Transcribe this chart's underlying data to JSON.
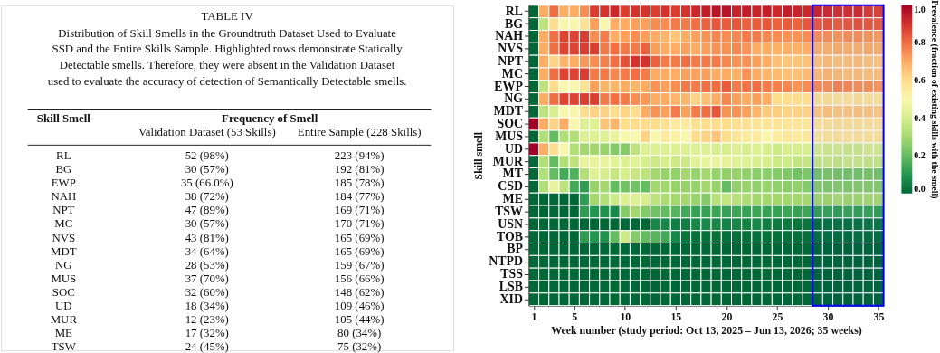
{
  "chart_data": [
    {
      "type": "other",
      "title": "TABLE IV",
      "annotations": [
        "Distribution of Skill Smells in the Groundtruth Dataset Used to Evaluate",
        "SSD and the Entire Skills Sample. Highlighted rows demonstrate Statically",
        "Detectable smells. Therefore, they were absent in the Validation Dataset",
        "used to evaluate the accuracy of detection of Semantically Detectable smells.",
        "Frequency of Smell",
        "Validation Dataset (53 Skills)",
        "Entire Sample (228 Skills)",
        "52 (98%)",
        "223 (94%)",
        "30 (57%)",
        "192 (81%)",
        "35 (66.0%)",
        "185 (78%)",
        "38 (72%)",
        "184 (77%)",
        "47 (89%)",
        "169 (71%)",
        "30 (57%)",
        "170 (71%)",
        "43 (81%)",
        "165 (69%)",
        "34 (64%)",
        "165 (69%)",
        "28 (53%)",
        "159 (67%)",
        "37 (70%)",
        "156 (66%)",
        "32 (60%)",
        "148 (62%)",
        "18 (34%)",
        "109 (46%)",
        "12 (23%)",
        "105 (44%)",
        "17 (32%)",
        "80 (34%)",
        "24 (45%)",
        "75 (32%)"
      ],
      "xlabel": "Skill Smell",
      "categories": [
        "RL",
        "BG",
        "EWP",
        "NAH",
        "NPT",
        "MC",
        "NVS",
        "MDT",
        "NG",
        "MUS",
        "SOC",
        "UD",
        "MUR",
        "ME",
        "TSW"
      ]
    },
    {
      "type": "heatmap",
      "xlabel": "Week number  (study period: Oct 13, 2025 – Jun 13, 2026; 35 weeks)",
      "ylabel": "Skill smell",
      "clabel": "Prevalence (fraction of existing skills with the smell)",
      "x": [
        1,
        2,
        3,
        4,
        5,
        6,
        7,
        8,
        9,
        10,
        11,
        12,
        13,
        14,
        15,
        16,
        17,
        18,
        19,
        20,
        21,
        22,
        23,
        24,
        25,
        26,
        27,
        28,
        29,
        30,
        31,
        32,
        33,
        34,
        35
      ],
      "xlim": [
        0.5,
        35.5
      ],
      "xticks": [
        1,
        5,
        10,
        15,
        20,
        25,
        30,
        35
      ],
      "y_categories": [
        "RL",
        "BG",
        "NAH",
        "NVS",
        "NPT",
        "MC",
        "EWP",
        "NG",
        "MDT",
        "SOC",
        "MUS",
        "UD",
        "MUR",
        "MT",
        "CSD",
        "ME",
        "TSW",
        "USN",
        "TOB",
        "BP",
        "NTPD",
        "TSS",
        "LSB",
        "XID"
      ],
      "cells": [
        [
          0,
          0.7,
          0.8,
          0.7,
          0.7,
          0.75,
          0.88,
          0.9,
          0.92,
          0.88,
          0.9,
          0.9,
          0.88,
          0.9,
          0.88,
          0.9,
          0.92,
          0.94,
          0.96,
          0.96,
          0.93,
          0.94,
          0.93,
          0.94,
          0.92,
          0.94,
          0.93,
          0.92,
          0.92,
          0.91,
          0.9,
          0.9,
          0.91,
          0.88,
          0.87
        ],
        [
          0,
          0.35,
          0.6,
          0.5,
          0.5,
          0.58,
          0.72,
          0.5,
          0.7,
          0.7,
          0.72,
          0.72,
          0.75,
          0.75,
          0.78,
          0.78,
          0.8,
          0.82,
          0.84,
          0.83,
          0.84,
          0.82,
          0.83,
          0.84,
          0.82,
          0.83,
          0.82,
          0.84,
          0.83,
          0.84,
          0.82,
          0.83,
          0.84,
          0.83,
          0.82
        ],
        [
          0,
          0.7,
          0.8,
          0.87,
          0.87,
          0.88,
          0.75,
          0.78,
          0.7,
          0.72,
          0.75,
          0.72,
          0.7,
          0.68,
          0.65,
          0.7,
          0.72,
          0.74,
          0.76,
          0.75,
          0.76,
          0.78,
          0.78,
          0.76,
          0.75,
          0.74,
          0.74,
          0.75,
          0.74,
          0.74,
          0.73,
          0.74,
          0.74,
          0.73,
          0.72
        ],
        [
          0,
          0.7,
          0.8,
          0.87,
          0.87,
          0.88,
          0.88,
          0.78,
          0.8,
          0.78,
          0.78,
          0.82,
          0.72,
          0.7,
          0.7,
          0.72,
          0.7,
          0.72,
          0.74,
          0.74,
          0.76,
          0.74,
          0.7,
          0.7,
          0.69,
          0.69,
          0.69,
          0.7,
          0.68,
          0.68,
          0.69,
          0.68,
          0.68,
          0.69,
          0.68
        ],
        [
          0,
          0.7,
          0.62,
          0.68,
          0.7,
          0.73,
          0.75,
          0.77,
          0.8,
          0.85,
          0.9,
          0.9,
          0.82,
          0.78,
          0.78,
          0.8,
          0.78,
          0.78,
          0.78,
          0.76,
          0.74,
          0.74,
          0.72,
          0.7,
          0.66,
          0.65,
          0.65,
          0.66,
          0.65,
          0.66,
          0.65,
          0.65,
          0.66,
          0.65,
          0.64
        ],
        [
          0,
          0.7,
          0.8,
          0.87,
          0.87,
          0.88,
          0.78,
          0.78,
          0.76,
          0.78,
          0.8,
          0.78,
          0.7,
          0.7,
          0.7,
          0.72,
          0.72,
          0.72,
          0.7,
          0.7,
          0.69,
          0.74,
          0.7,
          0.68,
          0.67,
          0.66,
          0.66,
          0.67,
          0.66,
          0.67,
          0.66,
          0.65,
          0.66,
          0.65,
          0.65
        ],
        [
          0,
          0.35,
          0.6,
          0.5,
          0.5,
          0.58,
          0.72,
          0.68,
          0.68,
          0.7,
          0.68,
          0.7,
          0.74,
          0.72,
          0.75,
          0.78,
          0.78,
          0.8,
          0.8,
          0.83,
          0.78,
          0.79,
          0.8,
          0.78,
          0.77,
          0.76,
          0.74,
          0.75,
          0.75,
          0.74,
          0.76,
          0.75,
          0.74,
          0.74,
          0.73
        ],
        [
          0,
          0.7,
          0.8,
          0.87,
          0.87,
          0.88,
          0.88,
          0.78,
          0.8,
          0.78,
          0.75,
          0.73,
          0.7,
          0.7,
          0.68,
          0.68,
          0.62,
          0.66,
          0.7,
          0.76,
          0.72,
          0.7,
          0.72,
          0.7,
          0.6,
          0.6,
          0.6,
          0.6,
          0.58,
          0.58,
          0.57,
          0.57,
          0.58,
          0.57,
          0.56
        ],
        [
          0,
          0.35,
          0.4,
          0.5,
          0.5,
          0.6,
          0.62,
          0.62,
          0.6,
          0.62,
          0.6,
          0.7,
          0.74,
          0.72,
          0.78,
          0.72,
          0.78,
          0.8,
          0.84,
          0.74,
          0.74,
          0.72,
          0.68,
          0.64,
          0.63,
          0.62,
          0.62,
          0.62,
          0.64,
          0.65,
          0.64,
          0.64,
          0.65,
          0.64,
          0.63
        ],
        [
          1.0,
          0.7,
          0.62,
          0.7,
          0.5,
          0.42,
          0.42,
          0.65,
          0.68,
          0.6,
          0.6,
          0.6,
          0.6,
          0.58,
          0.55,
          0.55,
          0.58,
          0.6,
          0.6,
          0.6,
          0.59,
          0.58,
          0.57,
          0.57,
          0.57,
          0.57,
          0.57,
          0.57,
          0.56,
          0.57,
          0.58,
          0.58,
          0.58,
          0.57,
          0.57
        ],
        [
          0,
          0.33,
          0.2,
          0.33,
          0.33,
          0.42,
          0.42,
          0.42,
          0.45,
          0.5,
          0.5,
          0.62,
          0.5,
          0.55,
          0.52,
          0.5,
          0.6,
          0.62,
          0.65,
          0.6,
          0.57,
          0.55,
          0.55,
          0.5,
          0.55,
          0.56,
          0.55,
          0.56,
          0.55,
          0.56,
          0.57,
          0.56,
          0.57,
          0.56,
          0.56
        ],
        [
          1.0,
          0.7,
          0.6,
          0.5,
          0.33,
          0.3,
          0.3,
          0.28,
          0.25,
          0.25,
          0.35,
          0.42,
          0.42,
          0.42,
          0.42,
          0.42,
          0.42,
          0.42,
          0.4,
          0.4,
          0.42,
          0.4,
          0.42,
          0.4,
          0.38,
          0.4,
          0.4,
          0.4,
          0.4,
          0.39,
          0.4,
          0.38,
          0.38,
          0.4,
          0.4
        ],
        [
          0,
          0.33,
          0.2,
          0.33,
          0.35,
          0.45,
          0.45,
          0.45,
          0.43,
          0.42,
          0.43,
          0.4,
          0.38,
          0.4,
          0.38,
          0.38,
          0.43,
          0.45,
          0.46,
          0.44,
          0.43,
          0.42,
          0.4,
          0.4,
          0.38,
          0.38,
          0.36,
          0.36,
          0.37,
          0.38,
          0.37,
          0.38,
          0.38,
          0.37,
          0.37
        ],
        [
          0,
          0.33,
          0.2,
          0.15,
          0.17,
          0.33,
          0.43,
          0.4,
          0.37,
          0.4,
          0.37,
          0.35,
          0.3,
          0.28,
          0.27,
          0.3,
          0.28,
          0.3,
          0.28,
          0.27,
          0.28,
          0.27,
          0.26,
          0.26,
          0.25,
          0.24,
          0.22,
          0.24,
          0.23,
          0.24,
          0.23,
          0.23,
          0.23,
          0.24,
          0.23
        ],
        [
          0,
          0.33,
          0.45,
          0.35,
          0.15,
          0.12,
          0.28,
          0.3,
          0.2,
          0.22,
          0.22,
          0.2,
          0.3,
          0.3,
          0.28,
          0.28,
          0.28,
          0.3,
          0.28,
          0.2,
          0.27,
          0.28,
          0.27,
          0.28,
          0.27,
          0.26,
          0.27,
          0.25,
          0.26,
          0.25,
          0.26,
          0.25,
          0.26,
          0.26,
          0.26
        ],
        [
          0,
          0,
          0,
          0,
          0,
          0.12,
          0.3,
          0.33,
          0.38,
          0.42,
          0.42,
          0.4,
          0.35,
          0.32,
          0.3,
          0.3,
          0.28,
          0.25,
          0.34,
          0.36,
          0.34,
          0.32,
          0.3,
          0.3,
          0.3,
          0.3,
          0.3,
          0.3,
          0.3,
          0.3,
          0.32,
          0.3,
          0.3,
          0.31,
          0.31
        ],
        [
          0,
          0,
          0,
          0,
          0,
          0.12,
          0.1,
          0.09,
          0.07,
          0.25,
          0.3,
          0.25,
          0.22,
          0.2,
          0.18,
          0.15,
          0.13,
          0.13,
          0.14,
          0.13,
          0.14,
          0.13,
          0.14,
          0.13,
          0.13,
          0.14,
          0.13,
          0.14,
          0.13,
          0.14,
          0.13,
          0.14,
          0.13,
          0.14,
          0.13
        ],
        [
          0,
          0,
          0,
          0,
          0,
          0,
          0,
          0,
          0,
          0,
          0,
          0,
          0.07,
          0.07,
          0.05,
          0.05,
          0.07,
          0.07,
          0.07,
          0.06,
          0.07,
          0.06,
          0.07,
          0.05,
          0.04,
          0.04,
          0.03,
          0.03,
          0.02,
          0.03,
          0.03,
          0.03,
          0.03,
          0.04,
          0.04
        ],
        [
          0,
          0,
          0,
          0,
          0,
          0.12,
          0.1,
          0.09,
          0.2,
          0.38,
          0.25,
          0.2,
          0.18,
          0.15,
          0.07,
          0.03,
          0.02,
          0.02,
          0.02,
          0.02,
          0.02,
          0.02,
          0.02,
          0.02,
          0.02,
          0.02,
          0.02,
          0.02,
          0.02,
          0.02,
          0.02,
          0.02,
          0.02,
          0.02,
          0.02
        ],
        [
          0,
          0,
          0,
          0,
          0,
          0,
          0,
          0,
          0,
          0,
          0,
          0,
          0,
          0,
          0,
          0,
          0,
          0,
          0,
          0,
          0,
          0,
          0,
          0,
          0,
          0,
          0,
          0,
          0,
          0,
          0,
          0,
          0,
          0,
          0
        ],
        [
          0,
          0,
          0,
          0,
          0,
          0,
          0,
          0,
          0,
          0,
          0,
          0,
          0,
          0,
          0,
          0,
          0,
          0,
          0,
          0,
          0,
          0,
          0,
          0,
          0,
          0,
          0,
          0,
          0,
          0,
          0,
          0,
          0,
          0,
          0
        ],
        [
          0,
          0,
          0,
          0,
          0,
          0,
          0,
          0,
          0,
          0,
          0,
          0,
          0,
          0,
          0,
          0,
          0,
          0,
          0,
          0,
          0,
          0,
          0,
          0,
          0,
          0,
          0,
          0,
          0,
          0,
          0,
          0,
          0,
          0,
          0
        ],
        [
          0,
          0,
          0,
          0,
          0,
          0,
          0,
          0,
          0,
          0,
          0,
          0,
          0,
          0,
          0,
          0,
          0,
          0,
          0,
          0,
          0,
          0,
          0,
          0,
          0,
          0,
          0,
          0,
          0,
          0,
          0,
          0,
          0,
          0,
          0
        ],
        [
          0,
          0,
          0,
          0,
          0,
          0,
          0,
          0,
          0,
          0,
          0,
          0,
          0,
          0,
          0,
          0,
          0,
          0,
          0,
          0,
          0,
          0,
          0,
          0,
          0,
          0,
          0,
          0,
          0,
          0,
          0,
          0,
          0,
          0,
          0
        ]
      ],
      "clim": [
        0,
        1
      ],
      "cticks": [
        {
          "value": 0,
          "label": "0.0"
        },
        {
          "value": 0.2,
          "label": "0.2"
        },
        {
          "value": 0.4,
          "label": "0.4"
        },
        {
          "value": 0.6,
          "label": "0.6"
        },
        {
          "value": 0.8,
          "label": "0.8"
        },
        {
          "value": 1,
          "label": "1.0"
        }
      ],
      "bands": [
        {
          "axis": "x",
          "from": 28.5,
          "to": 35.5,
          "color": "#0000ff"
        }
      ],
      "grid": false
    }
  ]
}
